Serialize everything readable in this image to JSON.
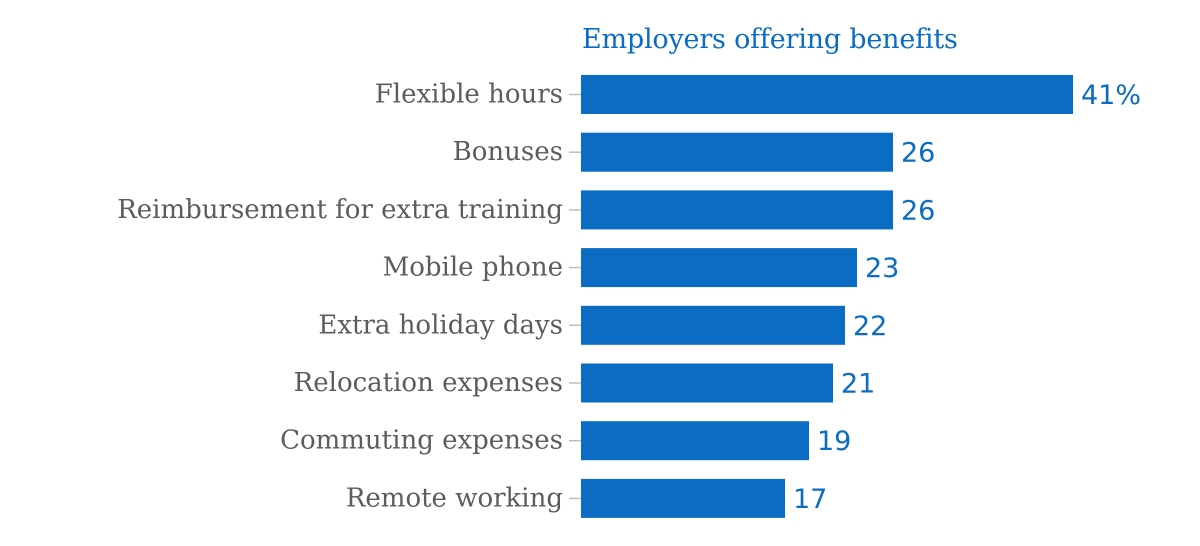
{
  "chart_data": {
    "type": "bar",
    "orientation": "horizontal",
    "title": "Employers offering benefits",
    "categories": [
      "Flexible hours",
      "Bonuses",
      "Reimbursement for extra training",
      "Mobile phone",
      "Extra holiday days",
      "Relocation expenses",
      "Commuting expenses",
      "Remote working"
    ],
    "values": [
      41,
      26,
      26,
      23,
      22,
      21,
      19,
      17
    ],
    "value_labels": [
      "41%",
      "26",
      "26",
      "23",
      "22",
      "21",
      "19",
      "17"
    ],
    "unit": "%",
    "xlim": [
      0,
      41
    ],
    "grid": false,
    "legend": "none",
    "colors": {
      "bar": "#0a6cc3",
      "value_text": "#0a6cc3",
      "category_text": "#5c5c5c",
      "tick": "#bdbdbd"
    }
  }
}
